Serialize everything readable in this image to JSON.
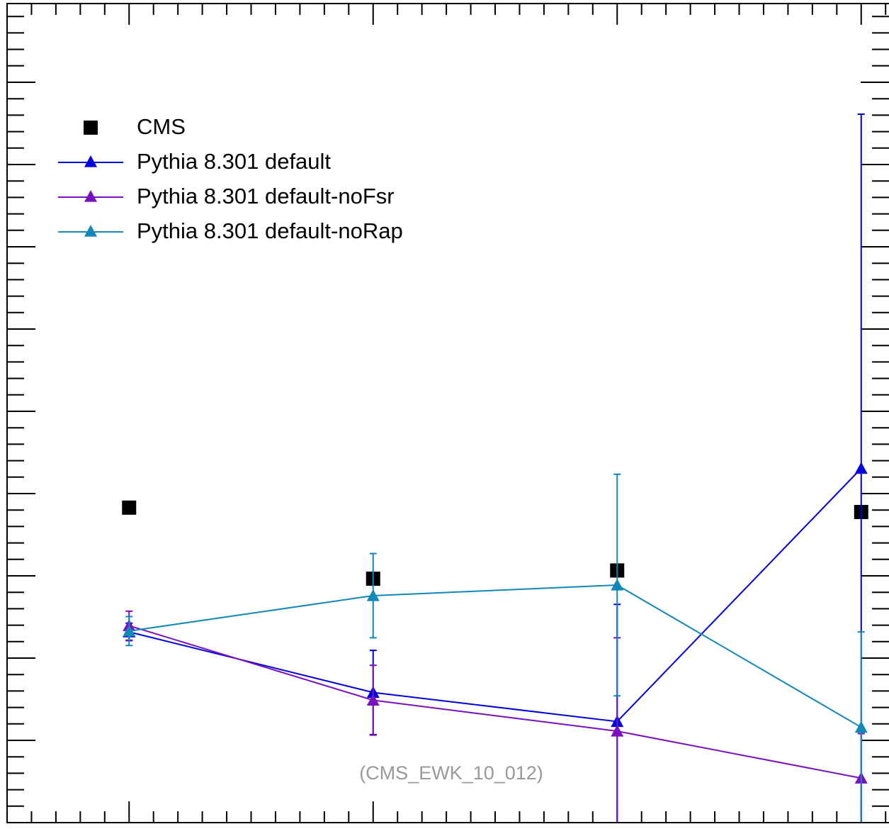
{
  "chart_data": {
    "type": "line",
    "x": [
      1,
      2,
      3,
      4
    ],
    "xlim": [
      0.5,
      4.5
    ],
    "ylim": [
      0,
      1
    ],
    "grid": false,
    "legend_position": "top-left",
    "annotation": "(CMS_EWK_10_012)",
    "series": [
      {
        "name": "CMS",
        "style": "markers",
        "marker": "square",
        "color": "#000000",
        "values": [
          0.3829,
          0.2965,
          0.3065,
          0.3776
        ],
        "errors": [
          0,
          0,
          0,
          0
        ]
      },
      {
        "name": "Pythia 8.301 default",
        "style": "line",
        "marker": "triangle",
        "color": "#0000dd",
        "values": [
          0.2318,
          0.1582,
          0.1229,
          0.4306
        ],
        "errors": [
          0.0106,
          0.0512,
          0.1424,
          0.4306
        ]
      },
      {
        "name": "Pythia 8.301 default-noFsr",
        "style": "line",
        "marker": "triangle",
        "color": "#7a10c0",
        "values": [
          0.2394,
          0.1488,
          0.1112,
          0.0541
        ],
        "errors": [
          0.0176,
          0.0424,
          0.1135,
          0.0541
        ]
      },
      {
        "name": "Pythia 8.301 default-noRap",
        "style": "line",
        "marker": "triangle",
        "color": "#1188b8",
        "values": [
          0.2329,
          0.2759,
          0.2888,
          0.1159
        ],
        "errors": [
          0.0176,
          0.0512,
          0.1347,
          0.1159
        ]
      }
    ]
  }
}
